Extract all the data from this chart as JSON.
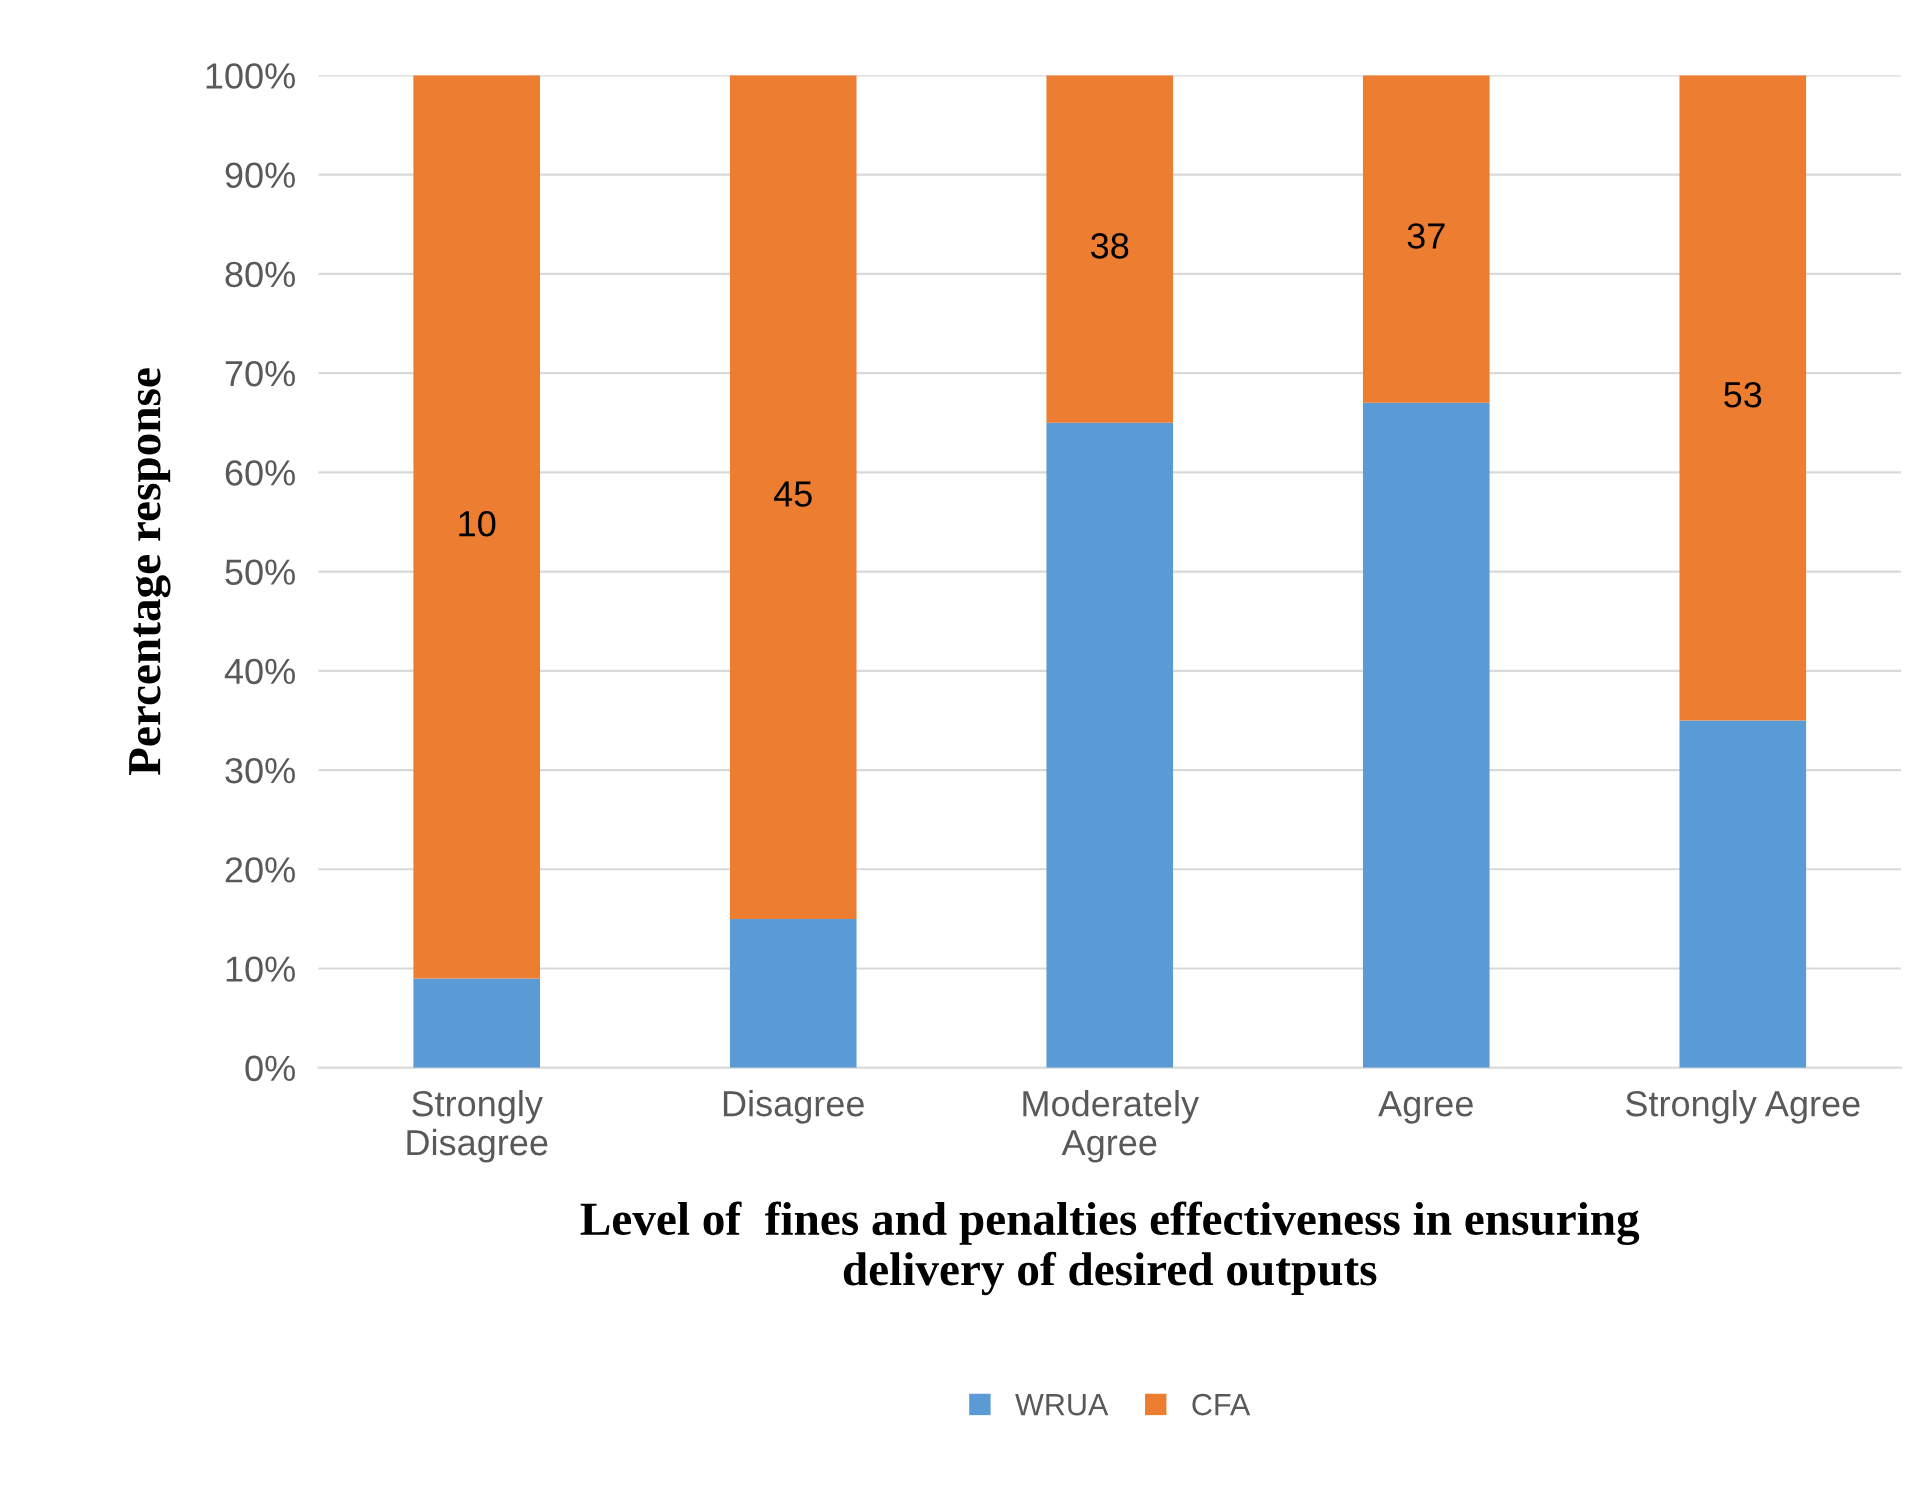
{
  "chart_data": {
    "type": "bar",
    "stacked": true,
    "xlabel": "Level of  fines and penalties effectiveness in ensuring\ndelivery of desired outputs",
    "ylabel": "Percentage response",
    "categories": [
      "Strongly\nDisagree",
      "Disagree",
      "Moderately\nAgree",
      "Agree",
      "Strongly Agree"
    ],
    "series": [
      {
        "name": "WRUA",
        "color": "#5b9bd5",
        "values": [
          9,
          15,
          65,
          67,
          35
        ]
      },
      {
        "name": "CFA",
        "color": "#ed7d31",
        "values": [
          91,
          85,
          35,
          33,
          65
        ]
      }
    ],
    "annotations": [
      "10",
      "45",
      "38",
      "37",
      "53"
    ],
    "ylim": [
      0,
      100
    ],
    "yticks": [
      {
        "value": 0,
        "label": "0%"
      },
      {
        "value": 10,
        "label": "10%"
      },
      {
        "value": 20,
        "label": "20%"
      },
      {
        "value": 30,
        "label": "30%"
      },
      {
        "value": 40,
        "label": "40%"
      },
      {
        "value": 50,
        "label": "50%"
      },
      {
        "value": 60,
        "label": "60%"
      },
      {
        "value": 70,
        "label": "70%"
      },
      {
        "value": 80,
        "label": "80%"
      },
      {
        "value": 90,
        "label": "90%"
      },
      {
        "value": 100,
        "label": "100%"
      }
    ],
    "grid": "y",
    "legend": "bottom"
  }
}
